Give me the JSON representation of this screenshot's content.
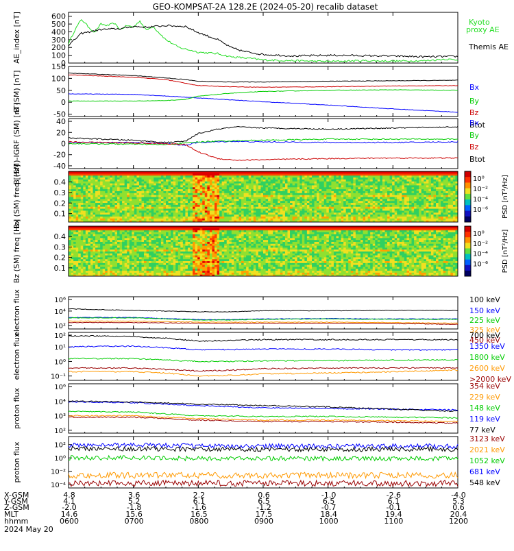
{
  "title": "GEO-KOMPSAT-2A 128.2E (2024-05-20) recalib dataset",
  "colors": {
    "black": "#000000",
    "blue": "#0000ff",
    "green": "#00cc00",
    "red": "#cc0000",
    "orange": "#ff9900",
    "maroon": "#990000",
    "lime": "#22dd22"
  },
  "chart_data": [
    {
      "type": "line",
      "ylabel": "AE_index [nT]",
      "yticks": [
        "600",
        "500",
        "400",
        "300",
        "200",
        "100",
        "0"
      ],
      "ylim": [
        0,
        650
      ],
      "x_hours": [
        6,
        12
      ],
      "series": [
        {
          "name": "Kyoto proxy AE",
          "color": "#22dd22",
          "x": [
            6.0,
            6.1,
            6.2,
            6.3,
            6.4,
            6.5,
            6.6,
            6.7,
            6.8,
            6.9,
            7.0,
            7.1,
            7.2,
            7.3,
            7.5,
            7.7,
            8.0,
            8.3,
            8.5,
            8.8,
            9.0,
            9.5,
            10.0,
            10.5,
            11.0,
            11.5,
            11.8,
            12.0
          ],
          "y": [
            250,
            430,
            560,
            470,
            390,
            500,
            480,
            510,
            430,
            480,
            460,
            540,
            420,
            470,
            300,
            200,
            140,
            120,
            80,
            60,
            40,
            30,
            20,
            30,
            25,
            30,
            50,
            40
          ]
        },
        {
          "name": "Themis AE",
          "color": "#000000",
          "x": [
            6.0,
            6.2,
            6.5,
            6.8,
            7.0,
            7.2,
            7.5,
            7.8,
            8.0,
            8.3,
            8.5,
            8.7,
            9.0,
            9.5,
            10.0,
            10.5,
            11.0,
            11.5,
            12.0
          ],
          "y": [
            230,
            380,
            430,
            440,
            470,
            460,
            480,
            470,
            390,
            300,
            200,
            150,
            110,
            90,
            100,
            95,
            90,
            80,
            85
          ]
        }
      ]
    },
    {
      "type": "line",
      "ylabel": "B (SM) [nT]",
      "yticks": [
        "150",
        "100",
        "50",
        "0",
        "-50"
      ],
      "ylim": [
        -60,
        150
      ],
      "x_hours": [
        6,
        12
      ],
      "series": [
        {
          "name": "Bx",
          "color": "#0000ff",
          "x": [
            6.0,
            7.0,
            7.5,
            8.0,
            8.5,
            9.0,
            10.0,
            11.0,
            12.0
          ],
          "y": [
            35,
            33,
            26,
            18,
            10,
            2,
            -12,
            -28,
            -42
          ]
        },
        {
          "name": "By",
          "color": "#00cc00",
          "x": [
            6.0,
            7.0,
            7.5,
            7.8,
            8.0,
            8.5,
            9.0,
            10.0,
            11.0,
            12.0
          ],
          "y": [
            5,
            5,
            7,
            12,
            25,
            38,
            45,
            50,
            52,
            50
          ]
        },
        {
          "name": "Bz",
          "color": "#cc0000",
          "x": [
            6.0,
            7.0,
            7.5,
            7.8,
            8.0,
            8.5,
            9.0,
            10.0,
            11.0,
            12.0
          ],
          "y": [
            115,
            105,
            95,
            80,
            70,
            65,
            63,
            65,
            68,
            70
          ]
        },
        {
          "name": "Btot",
          "color": "#000000",
          "x": [
            6.0,
            7.0,
            7.5,
            7.8,
            8.0,
            8.5,
            9.0,
            10.0,
            11.0,
            12.0
          ],
          "y": [
            122,
            112,
            102,
            95,
            88,
            85,
            85,
            88,
            90,
            92
          ]
        }
      ]
    },
    {
      "type": "line",
      "ylabel": "B (SM)-IGRF (SM) [nT]",
      "yticks": [
        "40",
        "20",
        "0",
        "-20",
        "-40"
      ],
      "ylim": [
        -45,
        45
      ],
      "x_hours": [
        6,
        12
      ],
      "series": [
        {
          "name": "Bx",
          "color": "#0000ff",
          "x": [
            6.0,
            7.0,
            7.5,
            7.8,
            8.0,
            8.5,
            9.0,
            10.0,
            11.0,
            12.0
          ],
          "y": [
            2,
            2,
            0,
            -3,
            2,
            4,
            3,
            2,
            2,
            3
          ]
        },
        {
          "name": "By",
          "color": "#00cc00",
          "x": [
            6.0,
            7.0,
            7.5,
            7.8,
            8.0,
            8.5,
            9.0,
            10.0,
            11.0,
            12.0
          ],
          "y": [
            0,
            -1,
            -2,
            1,
            3,
            5,
            6,
            8,
            8,
            8
          ]
        },
        {
          "name": "Bz",
          "color": "#cc0000",
          "x": [
            6.0,
            7.0,
            7.5,
            7.8,
            8.0,
            8.3,
            8.6,
            9.0,
            10.0,
            11.0,
            12.0
          ],
          "y": [
            3,
            1,
            0,
            -2,
            -15,
            -27,
            -30,
            -29,
            -27,
            -26,
            -26
          ]
        },
        {
          "name": "Btot",
          "color": "#000000",
          "x": [
            6.0,
            7.0,
            7.5,
            7.8,
            8.0,
            8.3,
            8.6,
            9.0,
            10.0,
            11.0,
            12.0
          ],
          "y": [
            10,
            6,
            2,
            4,
            18,
            26,
            30,
            28,
            26,
            28,
            30
          ]
        }
      ]
    },
    {
      "type": "heatmap",
      "ylabel": "Bx (SM) freq [Hz]",
      "yticks": [
        "0.4",
        "0.3",
        "0.2",
        "0.1"
      ],
      "ylim": [
        0.02,
        0.5
      ],
      "colorbar_label": "PSD [nT²/Hz]",
      "colorbar_ticks": [
        "10⁰",
        "10⁻²",
        "10⁻⁴",
        "10⁻⁶"
      ],
      "x_hours": [
        6,
        12
      ]
    },
    {
      "type": "heatmap",
      "ylabel": "Bz (SM) freq [Hz]",
      "yticks": [
        "0.4",
        "0.3",
        "0.2",
        "0.1"
      ],
      "ylim": [
        0.02,
        0.5
      ],
      "colorbar_label": "PSD [nT²/Hz]",
      "colorbar_ticks": [
        "10⁰",
        "10⁻²",
        "10⁻⁴",
        "10⁻⁶"
      ],
      "x_hours": [
        6,
        12
      ]
    },
    {
      "type": "line",
      "ylabel": "electron flux",
      "scale": "log",
      "yticks": [
        "10⁶",
        "10⁴",
        "10²"
      ],
      "ylim_log10": [
        1.5,
        6
      ],
      "x_hours": [
        6,
        12
      ],
      "series": [
        {
          "name": "100 keV",
          "color": "#000000",
          "x": [
            6.0,
            6.5,
            7.0,
            7.5,
            8.0,
            8.5,
            9.0,
            10.0,
            11.0,
            12.0
          ],
          "y_log10": [
            4.3,
            4.2,
            4.1,
            4.0,
            3.9,
            3.9,
            4.05,
            4.05,
            4.1,
            4.1
          ]
        },
        {
          "name": "150 keV",
          "color": "#0000ff",
          "x": [
            6.0,
            7.0,
            7.5,
            8.0,
            8.5,
            9.0,
            10.0,
            11.0,
            12.0
          ],
          "y_log10": [
            3.1,
            3.1,
            2.95,
            2.8,
            2.8,
            2.9,
            2.95,
            2.9,
            2.9
          ]
        },
        {
          "name": "225 keV",
          "color": "#00cc00",
          "x": [
            6.0,
            7.0,
            7.5,
            8.0,
            8.5,
            9.0,
            10.0,
            11.0,
            12.0
          ],
          "y_log10": [
            3.05,
            3.05,
            2.9,
            2.75,
            2.75,
            2.85,
            2.9,
            2.85,
            2.85
          ]
        },
        {
          "name": "325 keV",
          "color": "#ff9900",
          "x": [
            6.0,
            7.0,
            8.0,
            9.0,
            10.0,
            11.0,
            12.0
          ],
          "y_log10": [
            2.6,
            2.6,
            2.45,
            2.45,
            2.45,
            2.4,
            2.3
          ]
        },
        {
          "name": "450 keV",
          "color": "#990000",
          "x": [
            6.0,
            7.0,
            8.0,
            9.0,
            10.0,
            11.0,
            12.0
          ],
          "y_log10": [
            2.4,
            2.4,
            2.3,
            2.3,
            2.3,
            2.25,
            2.15
          ]
        }
      ]
    },
    {
      "type": "line",
      "ylabel": "electron flux",
      "scale": "log",
      "yticks": [
        "10²",
        "10¹",
        "10⁰",
        "10⁻¹"
      ],
      "ylim_log10": [
        -1.3,
        2
      ],
      "x_hours": [
        6,
        12
      ],
      "series": [
        {
          "name": "700 keV",
          "color": "#000000",
          "x": [
            6.0,
            6.5,
            7.0,
            7.5,
            8.0,
            8.5,
            9.0,
            10.0,
            11.0,
            12.0
          ],
          "y_log10": [
            1.75,
            1.75,
            1.7,
            1.6,
            1.4,
            1.45,
            1.5,
            1.5,
            1.5,
            1.5
          ]
        },
        {
          "name": "1350 keV",
          "color": "#0000ff",
          "x": [
            6.0,
            6.5,
            7.0,
            7.5,
            8.0,
            8.5,
            9.0,
            10.0,
            11.0,
            12.0
          ],
          "y_log10": [
            1.0,
            1.05,
            1.05,
            0.95,
            0.8,
            0.82,
            0.85,
            0.85,
            0.8,
            0.8
          ]
        },
        {
          "name": "1800 keV",
          "color": "#00cc00",
          "x": [
            6.0,
            7.0,
            7.5,
            8.0,
            8.5,
            9.0,
            10.0,
            11.0,
            12.0
          ],
          "y_log10": [
            0.2,
            0.2,
            0.1,
            0.0,
            0.0,
            0.05,
            0.05,
            0.1,
            0.1
          ]
        },
        {
          "name": "2600 keV",
          "color": "#ff9900",
          "x": [
            6.0,
            7.0,
            7.5,
            8.0,
            8.5,
            9.0,
            10.0,
            11.0,
            12.0
          ],
          "y_log10": [
            -0.7,
            -0.7,
            -0.8,
            -1.0,
            -0.95,
            -0.85,
            -0.8,
            -0.7,
            -0.6
          ]
        },
        {
          "name": ">2000 keV",
          "color": "#990000",
          "x": [
            6.0,
            7.0,
            7.5,
            8.0,
            8.5,
            9.0,
            10.0,
            11.0,
            12.0
          ],
          "y_log10": [
            -0.45,
            -0.45,
            -0.55,
            -0.65,
            -0.6,
            -0.5,
            -0.45,
            -0.45,
            -0.45
          ]
        }
      ]
    },
    {
      "type": "line",
      "ylabel": "proton flux",
      "scale": "log",
      "yticks": [
        "10⁶",
        "10⁴",
        "10³",
        "10²"
      ],
      "ylim_log10": [
        1.8,
        5.2
      ],
      "x_hours": [
        6,
        12
      ],
      "series": [
        {
          "name": "354 keV",
          "color": "#990000",
          "x": [
            6.0,
            7.0,
            8.0,
            9.0,
            10.0,
            11.0,
            12.0
          ],
          "y_log10": [
            2.9,
            2.9,
            2.7,
            2.6,
            2.6,
            2.55,
            2.5
          ]
        },
        {
          "name": "229 keV",
          "color": "#ff9900",
          "x": [
            6.0,
            7.0,
            8.0,
            9.0,
            10.0,
            11.0,
            12.0
          ],
          "y_log10": [
            3.0,
            3.0,
            2.8,
            2.7,
            2.7,
            2.65,
            2.6
          ]
        },
        {
          "name": "148 keV",
          "color": "#00cc00",
          "x": [
            6.0,
            7.0,
            8.0,
            9.0,
            10.0,
            11.0,
            12.0
          ],
          "y_log10": [
            3.3,
            3.25,
            3.0,
            2.95,
            2.95,
            2.9,
            2.85
          ]
        },
        {
          "name": "119 keV",
          "color": "#0000ff",
          "x": [
            6.0,
            7.0,
            8.0,
            9.0,
            10.0,
            11.0,
            12.0
          ],
          "y_log10": [
            3.95,
            3.9,
            3.7,
            3.55,
            3.5,
            3.45,
            3.4
          ]
        },
        {
          "name": "77 keV",
          "color": "#000000",
          "x": [
            6.0,
            7.0,
            8.0,
            9.0,
            10.0,
            11.0,
            12.0
          ],
          "y_log10": [
            4.0,
            3.95,
            3.8,
            3.7,
            3.6,
            3.45,
            3.3
          ]
        }
      ]
    },
    {
      "type": "line",
      "ylabel": "proton flux",
      "scale": "log",
      "yticks": [
        "10²",
        "10⁰",
        "10⁻²",
        "10⁻⁴"
      ],
      "ylim_log10": [
        -4.5,
        3.2
      ],
      "x_hours": [
        6,
        12
      ],
      "series": [
        {
          "name": "3123 keV",
          "color": "#990000",
          "x": [
            6.0,
            7.0,
            8.0,
            9.0,
            10.0,
            11.0,
            12.0
          ],
          "y_log10": [
            -3.8,
            -3.8,
            -3.8,
            -3.8,
            -3.8,
            -3.8,
            -3.8
          ]
        },
        {
          "name": "2021 keV",
          "color": "#ff9900",
          "x": [
            6.0,
            7.0,
            8.0,
            9.0,
            10.0,
            11.0,
            12.0
          ],
          "y_log10": [
            -2.6,
            -2.6,
            -2.6,
            -2.6,
            -2.6,
            -2.6,
            -2.6
          ]
        },
        {
          "name": "1052 keV",
          "color": "#00cc00",
          "x": [
            6.0,
            7.0,
            8.0,
            9.0,
            10.0,
            11.0,
            12.0
          ],
          "y_log10": [
            0.0,
            0.0,
            -0.1,
            -0.1,
            -0.1,
            -0.1,
            -0.1
          ]
        },
        {
          "name": "681 keV",
          "color": "#0000ff",
          "x": [
            6.0,
            7.0,
            8.0,
            9.0,
            10.0,
            11.0,
            12.0
          ],
          "y_log10": [
            1.9,
            1.9,
            1.8,
            1.75,
            1.75,
            1.75,
            1.75
          ]
        },
        {
          "name": "548 keV",
          "color": "#000000",
          "x": [
            6.0,
            7.0,
            8.0,
            9.0,
            10.0,
            11.0,
            12.0
          ],
          "y_log10": [
            1.4,
            1.4,
            1.3,
            1.3,
            1.3,
            1.3,
            1.3
          ]
        }
      ]
    }
  ],
  "axis_rows": [
    {
      "label": "X-GSM",
      "values": [
        "4.8",
        "3.6",
        "2.2",
        "0.6",
        "-1.0",
        "-2.6",
        "-4.0"
      ]
    },
    {
      "label": "Y-GSM",
      "values": [
        "4.1",
        "5.2",
        "6.1",
        "6.5",
        "6.5",
        "6.1",
        "5.3"
      ]
    },
    {
      "label": "Z-GSM",
      "values": [
        "-2.0",
        "-1.8",
        "-1.6",
        "-1.2",
        "-0.7",
        "-0.1",
        "0.6"
      ]
    },
    {
      "label": "MLT",
      "values": [
        "14.6",
        "15.6",
        "16.5",
        "17.5",
        "18.4",
        "19.4",
        "20.4"
      ]
    },
    {
      "label": "hhmm",
      "values": [
        "0600",
        "0700",
        "0800",
        "0900",
        "1000",
        "1100",
        "1200"
      ]
    }
  ],
  "date_label": "2024 May 20"
}
